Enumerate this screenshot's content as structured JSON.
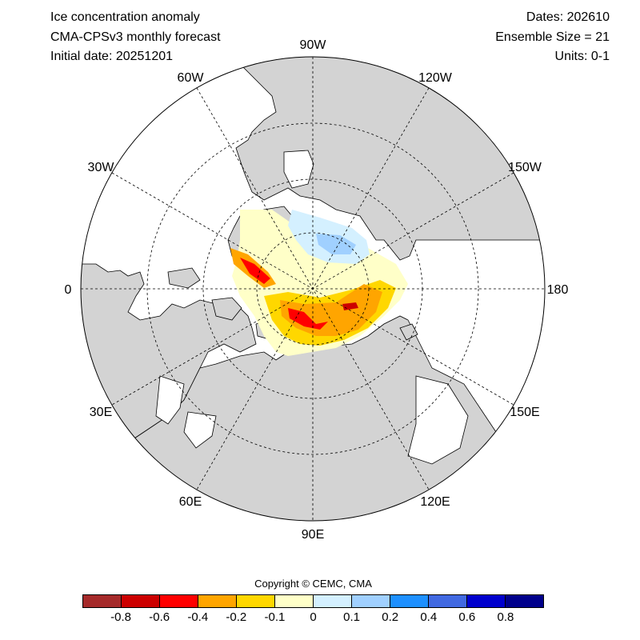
{
  "header": {
    "title": "Ice concentration anomaly",
    "model": "CMA-CPSv3 monthly forecast",
    "initial": "Initial date: 20251201",
    "dates": "Dates: 202610",
    "ensemble": "Ensemble Size = 21",
    "units": "Units: 0-1"
  },
  "map": {
    "projection": "north-polar-stereographic",
    "longitude_labels": [
      "90W",
      "120W",
      "150W",
      "180",
      "150E",
      "120E",
      "90E",
      "60E",
      "30E",
      "0",
      "30W",
      "60W"
    ],
    "colors": {
      "land": "#d3d3d3",
      "ocean": "#ffffff",
      "coast": "#000000"
    }
  },
  "copyright": "Copyright © CEMC, CMA",
  "colorbar": {
    "colors": [
      "#a52a2a",
      "#cc0000",
      "#ff0000",
      "#ffa500",
      "#ffd700",
      "#ffffc8",
      "#d4f0ff",
      "#a0d0ff",
      "#1e90ff",
      "#4169e1",
      "#0000cd",
      "#00008b"
    ],
    "ticks": [
      "-0.8",
      "-0.6",
      "-0.4",
      "-0.2",
      "-0.1",
      "0",
      "0.1",
      "0.2",
      "0.4",
      "0.6",
      "0.8"
    ]
  }
}
